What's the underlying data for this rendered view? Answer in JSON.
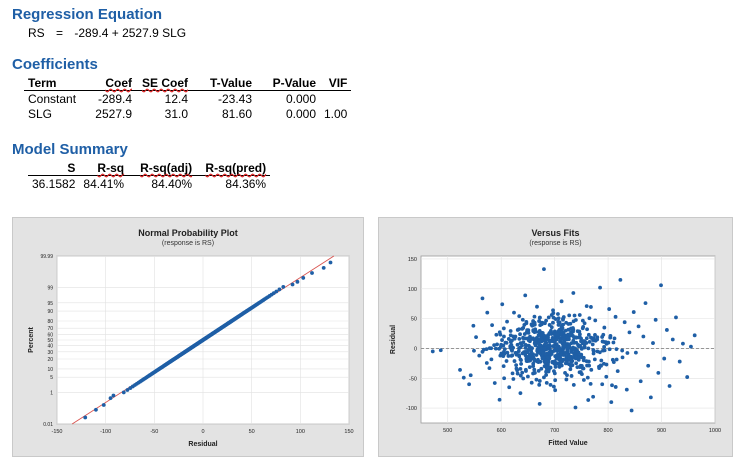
{
  "regression": {
    "title": "Regression Equation",
    "response": "RS",
    "equals": "=",
    "rhs": "-289.4 + 2527.9 SLG"
  },
  "coefficients": {
    "title": "Coefficients",
    "headers": [
      "Term",
      "Coef",
      "SE Coef",
      "T-Value",
      "P-Value",
      "VIF"
    ],
    "rows": [
      [
        "Constant",
        "-289.4",
        "12.4",
        "-23.43",
        "0.000",
        ""
      ],
      [
        "SLG",
        "2527.9",
        "31.0",
        "81.60",
        "0.000",
        "1.00"
      ]
    ]
  },
  "model_summary": {
    "title": "Model Summary",
    "headers": [
      "S",
      "R-sq",
      "R-sq(adj)",
      "R-sq(pred)"
    ],
    "rows": [
      [
        "36.1582",
        "84.41%",
        "84.40%",
        "84.36%"
      ]
    ]
  },
  "colors": {
    "points": "#1f5fa6",
    "fit_line": "#d9534f",
    "panel_bg": "#e3e3e3",
    "title": "#1f5fa6"
  },
  "chart_data": [
    {
      "type": "scatter",
      "title": "Normal Probability Plot",
      "subtitle": "(response is RS)",
      "xlabel": "Residual",
      "ylabel": "Percent",
      "xlim": [
        -150,
        150
      ],
      "xticks": [
        -150,
        -100,
        -50,
        0,
        50,
        100,
        150
      ],
      "yticks": [
        0.01,
        1,
        5,
        10,
        20,
        30,
        40,
        50,
        60,
        70,
        80,
        90,
        95,
        99,
        99.99
      ],
      "ytick_labels": [
        "0.01",
        "1",
        "5",
        "10",
        "20",
        "30",
        "40",
        "50",
        "60",
        "70",
        "80",
        "90",
        "95",
        "99",
        "99.99"
      ],
      "y_scale": "normal-probability",
      "n_points": 1232,
      "residual_sd": 36.16,
      "fit_line": "reference normal line",
      "grid": true,
      "lower_tail_points": [
        [
          -121,
          0.03
        ],
        [
          -110,
          0.1
        ],
        [
          -102,
          0.2
        ],
        [
          -95,
          0.5
        ],
        [
          -92,
          0.7
        ]
      ],
      "upper_tail_points": [
        [
          92,
          99.3
        ],
        [
          97,
          99.5
        ],
        [
          103,
          99.7
        ],
        [
          112,
          99.85
        ],
        [
          124,
          99.93
        ],
        [
          131,
          99.97
        ]
      ]
    },
    {
      "type": "scatter",
      "title": "Versus Fits",
      "subtitle": "(response is RS)",
      "xlabel": "Fitted Value",
      "ylabel": "Residual",
      "xlim": [
        450,
        1000
      ],
      "ylim": [
        -125,
        155
      ],
      "xticks": [
        500,
        600,
        700,
        800,
        900,
        1000
      ],
      "yticks": [
        -100,
        -50,
        0,
        50,
        100,
        150
      ],
      "reference_line": 0,
      "grid": true,
      "points": [
        [
          472,
          -5
        ],
        [
          487,
          -3
        ],
        [
          523,
          -36
        ],
        [
          530,
          -49
        ],
        [
          540,
          -60
        ],
        [
          543,
          -45
        ],
        [
          548,
          38
        ],
        [
          553,
          19
        ],
        [
          559,
          -12
        ],
        [
          565,
          84
        ],
        [
          568,
          11
        ],
        [
          574,
          60
        ],
        [
          578,
          -33
        ],
        [
          583,
          39
        ],
        [
          588,
          -58
        ],
        [
          591,
          23
        ],
        [
          597,
          -86
        ],
        [
          602,
          74
        ],
        [
          606,
          -9
        ],
        [
          611,
          45
        ],
        [
          615,
          -65
        ],
        [
          619,
          6
        ],
        [
          624,
          60
        ],
        [
          628,
          -28
        ],
        [
          631,
          31
        ],
        [
          636,
          -75
        ],
        [
          641,
          18
        ],
        [
          645,
          89
        ],
        [
          650,
          -47
        ],
        [
          654,
          2
        ],
        [
          658,
          38
        ],
        [
          662,
          -18
        ],
        [
          667,
          70
        ],
        [
          672,
          -93
        ],
        [
          676,
          12
        ],
        [
          680,
          133
        ],
        [
          684,
          -39
        ],
        [
          689,
          52
        ],
        [
          693,
          -6
        ],
        [
          697,
          64
        ],
        [
          701,
          -70
        ],
        [
          705,
          25
        ],
        [
          709,
          -31
        ],
        [
          713,
          79
        ],
        [
          718,
          4
        ],
        [
          722,
          -52
        ],
        [
          726,
          41
        ],
        [
          731,
          -14
        ],
        [
          735,
          93
        ],
        [
          739,
          -99
        ],
        [
          743,
          29
        ],
        [
          747,
          56
        ],
        [
          751,
          -43
        ],
        [
          755,
          8
        ],
        [
          760,
          71
        ],
        [
          764,
          -22
        ],
        [
          768,
          18
        ],
        [
          772,
          -81
        ],
        [
          776,
          47
        ],
        [
          780,
          -5
        ],
        [
          785,
          102
        ],
        [
          789,
          -60
        ],
        [
          793,
          35
        ],
        [
          797,
          -27
        ],
        [
          802,
          66
        ],
        [
          806,
          -90
        ],
        [
          810,
          10
        ],
        [
          814,
          53
        ],
        [
          818,
          -38
        ],
        [
          823,
          115
        ],
        [
          827,
          -15
        ],
        [
          831,
          44
        ],
        [
          835,
          -69
        ],
        [
          840,
          27
        ],
        [
          844,
          -104
        ],
        [
          848,
          61
        ],
        [
          852,
          -7
        ],
        [
          857,
          37
        ],
        [
          861,
          -55
        ],
        [
          866,
          20
        ],
        [
          870,
          76
        ],
        [
          875,
          -29
        ],
        [
          880,
          -82
        ],
        [
          884,
          9
        ],
        [
          889,
          48
        ],
        [
          894,
          -41
        ],
        [
          899,
          106
        ],
        [
          905,
          -17
        ],
        [
          910,
          31
        ],
        [
          915,
          -63
        ],
        [
          921,
          15
        ],
        [
          927,
          52
        ],
        [
          934,
          -22
        ],
        [
          940,
          8
        ],
        [
          948,
          -48
        ],
        [
          955,
          3
        ],
        [
          962,
          22
        ]
      ]
    }
  ]
}
